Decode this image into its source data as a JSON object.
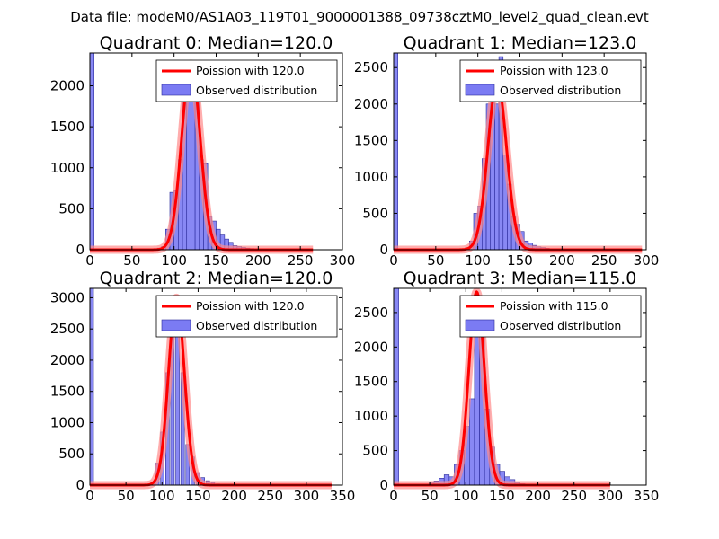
{
  "suptitle": "Data file: modeM0/AS1A03_119T01_9000001388_09738cztM0_level2_quad_clean.evt",
  "colors": {
    "hist_fill": "#7b7bf3",
    "hist_edge": "#2a2a9a",
    "fit": "#ff0000",
    "fit_halo": "#ff8a8a"
  },
  "chart_data": [
    {
      "type": "bar",
      "title": "Quadrant 0: Median=120.0",
      "xlim": [
        0,
        300
      ],
      "ylim": [
        0,
        2400
      ],
      "xticks": [
        0,
        50,
        100,
        150,
        200,
        250,
        300
      ],
      "yticks": [
        0,
        500,
        1000,
        1500,
        2000
      ],
      "legend": {
        "position": "top-right",
        "fit_label": "Poission with 120.0",
        "hist_label": "Observed distribution"
      },
      "bin_width": 5,
      "bins": [
        [
          0,
          2400
        ],
        [
          80,
          20
        ],
        [
          85,
          40
        ],
        [
          90,
          250
        ],
        [
          95,
          700
        ],
        [
          100,
          720
        ],
        [
          105,
          1100
        ],
        [
          110,
          2250
        ],
        [
          115,
          2150
        ],
        [
          120,
          2200
        ],
        [
          125,
          1950
        ],
        [
          130,
          1100
        ],
        [
          135,
          1050
        ],
        [
          140,
          400
        ],
        [
          145,
          350
        ],
        [
          150,
          250
        ],
        [
          155,
          180
        ],
        [
          160,
          130
        ],
        [
          165,
          90
        ],
        [
          170,
          50
        ],
        [
          175,
          40
        ],
        [
          180,
          30
        ],
        [
          185,
          20
        ],
        [
          190,
          15
        ],
        [
          195,
          10
        ]
      ],
      "poisson_mean": 120,
      "poisson_peak": 2270,
      "fit_xmax": 265
    },
    {
      "type": "bar",
      "title": "Quadrant 1: Median=123.0",
      "xlim": [
        0,
        300
      ],
      "ylim": [
        0,
        2700
      ],
      "xticks": [
        0,
        50,
        100,
        150,
        200,
        250,
        300
      ],
      "yticks": [
        0,
        500,
        1000,
        1500,
        2000,
        2500
      ],
      "legend": {
        "position": "top-right",
        "fit_label": "Poission with 123.0",
        "hist_label": "Observed distribution"
      },
      "bin_width": 5,
      "bins": [
        [
          0,
          2700
        ],
        [
          85,
          30
        ],
        [
          90,
          120
        ],
        [
          95,
          500
        ],
        [
          100,
          600
        ],
        [
          105,
          1250
        ],
        [
          110,
          2000
        ],
        [
          115,
          2600
        ],
        [
          120,
          2000
        ],
        [
          125,
          2650
        ],
        [
          130,
          1300
        ],
        [
          135,
          900
        ],
        [
          140,
          450
        ],
        [
          145,
          350
        ],
        [
          150,
          250
        ],
        [
          155,
          120
        ],
        [
          160,
          90
        ],
        [
          165,
          60
        ],
        [
          170,
          40
        ],
        [
          175,
          30
        ],
        [
          180,
          20
        ],
        [
          185,
          10
        ]
      ],
      "poisson_mean": 123,
      "poisson_peak": 2310,
      "fit_xmax": 295
    },
    {
      "type": "bar",
      "title": "Quadrant 2: Median=120.0",
      "xlim": [
        0,
        350
      ],
      "ylim": [
        0,
        3150
      ],
      "xticks": [
        0,
        50,
        100,
        150,
        200,
        250,
        300,
        350
      ],
      "yticks": [
        0,
        500,
        1000,
        1500,
        2000,
        2500,
        3000
      ],
      "legend": {
        "position": "top-right",
        "fit_label": "Poission with 120.0",
        "hist_label": "Observed distribution"
      },
      "bin_width": 5,
      "bins": [
        [
          0,
          3150
        ],
        [
          84,
          50
        ],
        [
          91,
          350
        ],
        [
          98,
          850
        ],
        [
          105,
          1800
        ],
        [
          112,
          2900
        ],
        [
          119,
          2700
        ],
        [
          126,
          1800
        ],
        [
          133,
          650
        ],
        [
          140,
          450
        ],
        [
          147,
          200
        ],
        [
          154,
          120
        ],
        [
          161,
          70
        ],
        [
          168,
          40
        ],
        [
          175,
          20
        ],
        [
          182,
          10
        ]
      ],
      "poisson_mean": 120,
      "poisson_peak": 3000,
      "fit_xmax": 335
    },
    {
      "type": "bar",
      "title": "Quadrant 3: Median=115.0",
      "xlim": [
        0,
        350
      ],
      "ylim": [
        0,
        2850
      ],
      "xticks": [
        0,
        50,
        100,
        150,
        200,
        250,
        300,
        350
      ],
      "yticks": [
        0,
        500,
        1000,
        1500,
        2000,
        2500
      ],
      "legend": {
        "position": "top-right",
        "fit_label": "Poission with 115.0",
        "hist_label": "Observed distribution"
      },
      "bin_width": 7,
      "bins": [
        [
          0,
          2850
        ],
        [
          49,
          30
        ],
        [
          56,
          60
        ],
        [
          63,
          100
        ],
        [
          70,
          150
        ],
        [
          77,
          120
        ],
        [
          84,
          300
        ],
        [
          91,
          500
        ],
        [
          98,
          850
        ],
        [
          105,
          1250
        ],
        [
          112,
          2750
        ],
        [
          119,
          2250
        ],
        [
          126,
          1100
        ],
        [
          133,
          550
        ],
        [
          140,
          300
        ],
        [
          147,
          200
        ],
        [
          154,
          120
        ],
        [
          161,
          80
        ],
        [
          168,
          40
        ],
        [
          175,
          20
        ]
      ],
      "poisson_mean": 115,
      "poisson_peak": 2800,
      "fit_xmax": 300
    }
  ]
}
